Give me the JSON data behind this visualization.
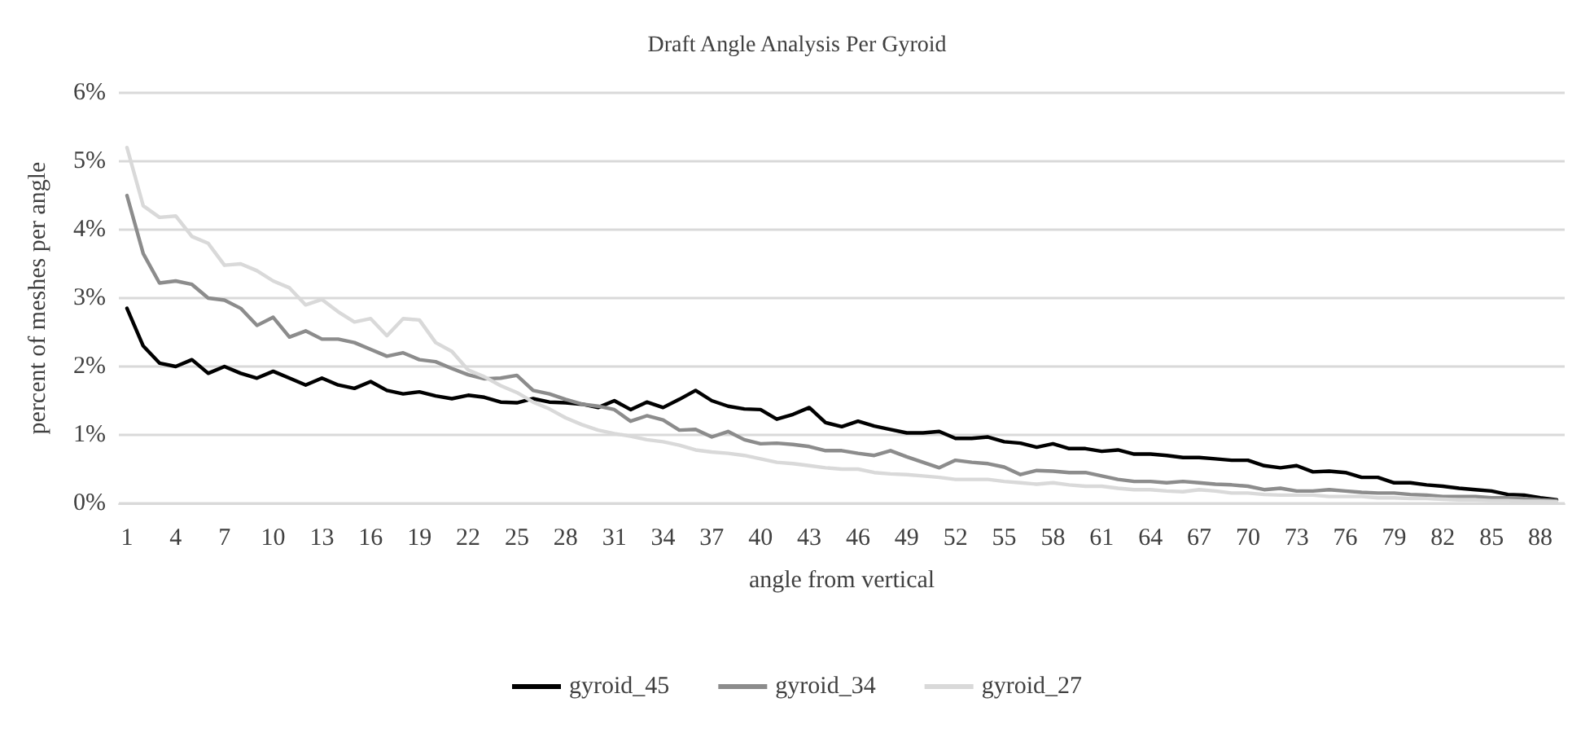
{
  "chart_data": {
    "type": "line",
    "title": "Draft Angle Analysis Per Gyroid",
    "xlabel": "angle from vertical",
    "ylabel": "percent of meshes per angle",
    "categories": [
      "1",
      null,
      null,
      "4",
      null,
      null,
      "7",
      null,
      null,
      "10",
      null,
      null,
      "13",
      null,
      null,
      "16",
      null,
      null,
      "19",
      null,
      null,
      "22",
      null,
      null,
      "25",
      null,
      null,
      "28",
      null,
      null,
      "31",
      null,
      null,
      "34",
      null,
      null,
      "37",
      null,
      null,
      "40",
      null,
      null,
      "43",
      null,
      null,
      "46",
      null,
      null,
      "49",
      null,
      null,
      "52",
      null,
      null,
      "55",
      null,
      null,
      "58",
      null,
      null,
      "61",
      null,
      null,
      "64",
      null,
      null,
      "67",
      null,
      null,
      "70",
      null,
      null,
      "73",
      null,
      null,
      "76",
      null,
      null,
      "79",
      null,
      null,
      "82",
      null,
      null,
      "85",
      null,
      null,
      "88",
      null
    ],
    "series": [
      {
        "name": "gyroid_45",
        "color": "#000000",
        "values": [
          2.85,
          2.3,
          2.05,
          2.0,
          2.1,
          1.9,
          2.0,
          1.9,
          1.83,
          1.93,
          1.83,
          1.73,
          1.83,
          1.73,
          1.68,
          1.78,
          1.65,
          1.6,
          1.63,
          1.57,
          1.53,
          1.58,
          1.55,
          1.48,
          1.47,
          1.53,
          1.48,
          1.47,
          1.45,
          1.4,
          1.5,
          1.37,
          1.48,
          1.4,
          1.52,
          1.65,
          1.5,
          1.42,
          1.38,
          1.37,
          1.23,
          1.3,
          1.4,
          1.18,
          1.12,
          1.2,
          1.13,
          1.08,
          1.03,
          1.03,
          1.05,
          0.95,
          0.95,
          0.97,
          0.9,
          0.88,
          0.82,
          0.87,
          0.8,
          0.8,
          0.76,
          0.78,
          0.72,
          0.72,
          0.7,
          0.67,
          0.67,
          0.65,
          0.63,
          0.63,
          0.55,
          0.52,
          0.55,
          0.46,
          0.47,
          0.45,
          0.38,
          0.38,
          0.3,
          0.3,
          0.27,
          0.25,
          0.22,
          0.2,
          0.18,
          0.13,
          0.12,
          0.08,
          0.05
        ]
      },
      {
        "name": "gyroid_34",
        "color": "#8c8c8c",
        "values": [
          4.5,
          3.65,
          3.22,
          3.25,
          3.2,
          3.0,
          2.97,
          2.85,
          2.6,
          2.72,
          2.43,
          2.52,
          2.4,
          2.4,
          2.35,
          2.25,
          2.15,
          2.2,
          2.1,
          2.07,
          1.97,
          1.88,
          1.82,
          1.83,
          1.87,
          1.65,
          1.6,
          1.52,
          1.45,
          1.42,
          1.37,
          1.2,
          1.28,
          1.22,
          1.07,
          1.08,
          0.97,
          1.05,
          0.93,
          0.87,
          0.88,
          0.86,
          0.83,
          0.77,
          0.77,
          0.73,
          0.7,
          0.77,
          0.68,
          0.6,
          0.52,
          0.63,
          0.6,
          0.58,
          0.53,
          0.42,
          0.48,
          0.47,
          0.45,
          0.45,
          0.4,
          0.35,
          0.32,
          0.32,
          0.3,
          0.32,
          0.3,
          0.28,
          0.27,
          0.25,
          0.2,
          0.22,
          0.18,
          0.18,
          0.2,
          0.18,
          0.16,
          0.15,
          0.15,
          0.13,
          0.12,
          0.1,
          0.1,
          0.1,
          0.08,
          0.08,
          0.07,
          0.05,
          0.04
        ]
      },
      {
        "name": "gyroid_27",
        "color": "#d9d9d9",
        "values": [
          5.2,
          4.35,
          4.18,
          4.2,
          3.9,
          3.8,
          3.48,
          3.5,
          3.4,
          3.25,
          3.15,
          2.9,
          2.98,
          2.8,
          2.65,
          2.7,
          2.45,
          2.7,
          2.68,
          2.35,
          2.22,
          1.95,
          1.85,
          1.72,
          1.62,
          1.48,
          1.38,
          1.25,
          1.15,
          1.07,
          1.02,
          0.98,
          0.93,
          0.9,
          0.85,
          0.78,
          0.75,
          0.73,
          0.7,
          0.65,
          0.6,
          0.58,
          0.55,
          0.52,
          0.5,
          0.5,
          0.45,
          0.43,
          0.42,
          0.4,
          0.38,
          0.35,
          0.35,
          0.35,
          0.32,
          0.3,
          0.28,
          0.3,
          0.27,
          0.25,
          0.25,
          0.22,
          0.2,
          0.2,
          0.18,
          0.17,
          0.2,
          0.18,
          0.15,
          0.15,
          0.13,
          0.12,
          0.12,
          0.12,
          0.1,
          0.1,
          0.1,
          0.08,
          0.08,
          0.07,
          0.07,
          0.06,
          0.05,
          0.05,
          0.04,
          0.04,
          0.03,
          0.03,
          0.02
        ]
      }
    ],
    "ylim": [
      0,
      6
    ],
    "yticks": [
      {
        "value": 0,
        "label": "0%"
      },
      {
        "value": 1,
        "label": "1%"
      },
      {
        "value": 2,
        "label": "2%"
      },
      {
        "value": 3,
        "label": "3%"
      },
      {
        "value": 4,
        "label": "4%"
      },
      {
        "value": 5,
        "label": "5%"
      },
      {
        "value": 6,
        "label": "6%"
      }
    ],
    "grid": "y",
    "legend": "bottom",
    "marker": "none",
    "line_style": "solid"
  }
}
